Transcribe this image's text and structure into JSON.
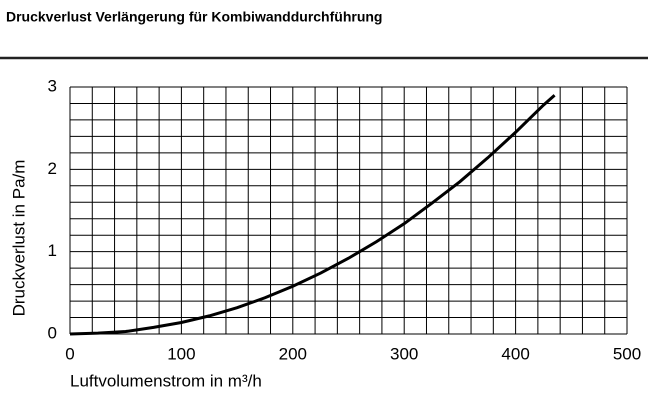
{
  "chart_data": {
    "type": "line",
    "title": "Druckverlust Verlängerung für Kombiwanddurchführung",
    "xlabel": "Luftvolumenstrom in m³/h",
    "ylabel": "Druckverlust in Pa/m",
    "x": [
      0,
      25,
      50,
      75,
      100,
      125,
      150,
      175,
      200,
      225,
      250,
      275,
      300,
      325,
      350,
      375,
      400,
      425,
      435
    ],
    "values": [
      0,
      0.01,
      0.03,
      0.08,
      0.14,
      0.22,
      0.32,
      0.44,
      0.58,
      0.74,
      0.92,
      1.12,
      1.34,
      1.59,
      1.85,
      2.14,
      2.45,
      2.78,
      2.9
    ],
    "color": "#000000",
    "xlim": [
      0,
      500
    ],
    "ylim": [
      0,
      3
    ],
    "xticks": [
      0,
      100,
      200,
      300,
      400,
      500
    ],
    "yticks": [
      0,
      1,
      2,
      3
    ],
    "xgrid": [
      0,
      20,
      40,
      60,
      80,
      100,
      120,
      140,
      160,
      180,
      200,
      220,
      240,
      260,
      280,
      300,
      320,
      340,
      360,
      380,
      400,
      420,
      440,
      460,
      480,
      500
    ],
    "ygrid": [
      0,
      0.2,
      0.4,
      0.6,
      0.8,
      1,
      1.2,
      1.4,
      1.6,
      1.8,
      2,
      2.2,
      2.4,
      2.6,
      2.8,
      3
    ]
  }
}
